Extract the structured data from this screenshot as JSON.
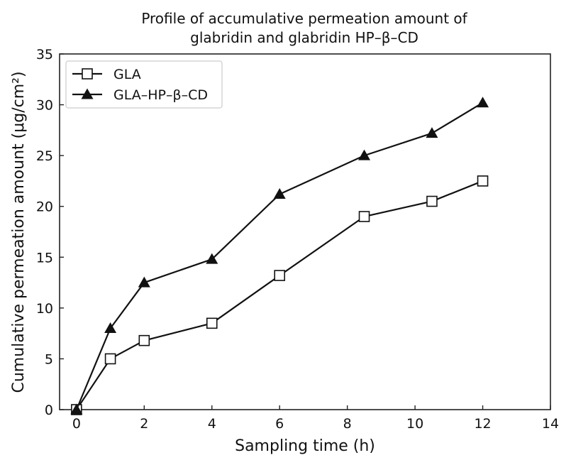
{
  "chart_data": {
    "type": "line",
    "title_lines": [
      "Profile of accumulative permeation amount of",
      "glabridin and glabridin HP–β–CD"
    ],
    "xlabel": "Sampling time (h)",
    "ylabel": "Cumulative permeation amount (μg/cm²)",
    "xlim": [
      -0.5,
      14
    ],
    "ylim": [
      0,
      35
    ],
    "xticks": [
      0,
      2,
      4,
      6,
      8,
      10,
      12,
      14
    ],
    "yticks": [
      0,
      5,
      10,
      15,
      20,
      25,
      30,
      35
    ],
    "grid": false,
    "legend_position": "top-left",
    "series": [
      {
        "name": "GLA",
        "marker": "square-open",
        "color": "#111111",
        "x": [
          0,
          1,
          2,
          4,
          6,
          8.5,
          10.5,
          12
        ],
        "y": [
          0,
          5,
          6.8,
          8.5,
          13.2,
          19,
          20.5,
          22.5
        ]
      },
      {
        "name": "GLA–HP–β–CD",
        "marker": "triangle-filled",
        "color": "#111111",
        "x": [
          0,
          1,
          2,
          4,
          6,
          8.5,
          10.5,
          12
        ],
        "y": [
          0,
          8,
          12.5,
          14.8,
          21.2,
          25,
          27.2,
          30.2
        ]
      }
    ]
  }
}
